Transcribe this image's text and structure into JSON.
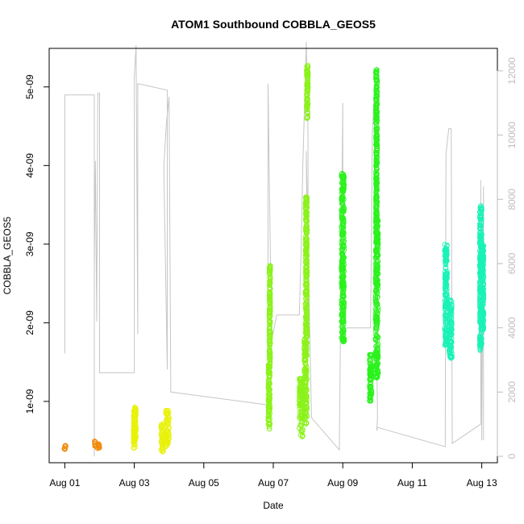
{
  "chart_data": {
    "type": "scatter",
    "title": "ATOM1 Southbound COBBLA_GEOS5",
    "xlabel": "Date",
    "ylabel": "COBBLA_GEOS5",
    "x_unit": "days",
    "x_tick_labels": [
      "Aug 01",
      "Aug 03",
      "Aug 05",
      "Aug 07",
      "Aug 09",
      "Aug 11",
      "Aug 13"
    ],
    "x_tick_values": [
      0,
      2,
      4,
      6,
      8,
      10,
      12
    ],
    "xlim": [
      -0.45,
      12.45
    ],
    "y_tick_labels": [
      "1e-09",
      "2e-09",
      "3e-09",
      "4e-09",
      "5e-09"
    ],
    "y_tick_values": [
      1e-09,
      2e-09,
      3e-09,
      4e-09,
      5e-09
    ],
    "ylim": [
      2.2e-10,
      5.49e-09
    ],
    "y2_tick_labels": [
      "0",
      "2000",
      "4000",
      "6000",
      "8000",
      "10000",
      "12000"
    ],
    "y2_tick_values": [
      0,
      2000,
      4000,
      6000,
      8000,
      10000,
      12000
    ],
    "y2lim": [
      -200,
      12700
    ],
    "grid": false,
    "colors": {
      "secondary_line": "#c6c6c6",
      "right_axis": "#bdbdbd",
      "frame": "#000000"
    },
    "series": [
      {
        "color": "#f28a0c",
        "clusters": [
          {
            "x": 0.0,
            "width": 0.05,
            "ymin": 3.9e-10,
            "ymax": 4.4e-10
          },
          {
            "x": 0.88,
            "width": 0.06,
            "ymin": 4.3e-10,
            "ymax": 5e-10
          },
          {
            "x": 0.97,
            "width": 0.06,
            "ymin": 4e-10,
            "ymax": 4.6e-10
          }
        ]
      },
      {
        "color": "#e8f20a",
        "clusters": [
          {
            "x": 2.0,
            "width": 0.05,
            "ymin": 3.9e-10,
            "ymax": 9e-10
          },
          {
            "x": 2.03,
            "width": 0.04,
            "ymin": 5e-10,
            "ymax": 9.3e-10
          },
          {
            "x": 2.8,
            "width": 0.08,
            "ymin": 3.6e-10,
            "ymax": 7.2e-10
          },
          {
            "x": 2.95,
            "width": 0.1,
            "ymin": 4.2e-10,
            "ymax": 9e-10
          }
        ]
      },
      {
        "color": "#8bf21a",
        "clusters": [
          {
            "x": 5.88,
            "width": 0.05,
            "ymin": 6.5e-10,
            "ymax": 1.5e-09
          },
          {
            "x": 5.9,
            "width": 0.03,
            "ymin": 1.5e-09,
            "ymax": 2.75e-09
          },
          {
            "x": 6.8,
            "width": 0.1,
            "ymin": 5.5e-10,
            "ymax": 1.3e-09
          },
          {
            "x": 6.93,
            "width": 0.08,
            "ymin": 7e-10,
            "ymax": 1.8e-09
          },
          {
            "x": 6.95,
            "width": 0.05,
            "ymin": 1.8e-09,
            "ymax": 3.6e-09
          },
          {
            "x": 6.98,
            "width": 0.04,
            "ymin": 4.6e-09,
            "ymax": 5.28e-09
          }
        ]
      },
      {
        "color": "#2af21c",
        "clusters": [
          {
            "x": 8.0,
            "width": 0.08,
            "ymin": 1.75e-09,
            "ymax": 3.9e-09
          },
          {
            "x": 8.8,
            "width": 0.06,
            "ymin": 1e-09,
            "ymax": 1.6e-09
          },
          {
            "x": 8.98,
            "width": 0.08,
            "ymin": 1.3e-09,
            "ymax": 3.3e-09
          },
          {
            "x": 8.97,
            "width": 0.04,
            "ymin": 3.3e-09,
            "ymax": 5.22e-09
          }
        ]
      },
      {
        "color": "#1af2b6",
        "clusters": [
          {
            "x": 10.97,
            "width": 0.07,
            "ymin": 1.7e-09,
            "ymax": 3e-09
          },
          {
            "x": 11.1,
            "width": 0.08,
            "ymin": 1.55e-09,
            "ymax": 2.3e-09
          },
          {
            "x": 11.97,
            "width": 0.06,
            "ymin": 1.65e-09,
            "ymax": 3.5e-09
          },
          {
            "x": 12.03,
            "width": 0.05,
            "ymin": 1.9e-09,
            "ymax": 3e-09
          }
        ]
      }
    ],
    "secondary_series": {
      "axis": "right",
      "points": [
        [
          0.0,
          11250
        ],
        [
          0.0,
          3200
        ],
        [
          0.0,
          11250
        ],
        [
          0.85,
          11250
        ],
        [
          0.85,
          0
        ],
        [
          0.85,
          5800
        ],
        [
          0.88,
          9200
        ],
        [
          0.92,
          4200
        ],
        [
          0.95,
          11300
        ],
        [
          1.0,
          11300
        ],
        [
          1.0,
          2600
        ],
        [
          2.0,
          2600
        ],
        [
          2.0,
          11800
        ],
        [
          2.05,
          12800
        ],
        [
          2.1,
          3800
        ],
        [
          2.1,
          11600
        ],
        [
          2.95,
          11400
        ],
        [
          2.95,
          2700
        ],
        [
          2.85,
          9000
        ],
        [
          2.92,
          10300
        ],
        [
          3.0,
          11200
        ],
        [
          3.05,
          2000
        ],
        [
          5.85,
          1600
        ],
        [
          5.85,
          11600
        ],
        [
          5.95,
          3600
        ],
        [
          6.1,
          4400
        ],
        [
          6.75,
          4400
        ],
        [
          6.8,
          6400
        ],
        [
          6.85,
          9000
        ],
        [
          6.95,
          12900
        ],
        [
          7.0,
          10000
        ],
        [
          7.0,
          3600
        ],
        [
          6.95,
          9500
        ],
        [
          7.1,
          1200
        ],
        [
          7.9,
          200
        ],
        [
          8.0,
          11000
        ],
        [
          8.0,
          3800
        ],
        [
          8.1,
          4000
        ],
        [
          8.8,
          4000
        ],
        [
          8.85,
          10000
        ],
        [
          8.9,
          11200
        ],
        [
          8.95,
          6500
        ],
        [
          9.0,
          1200
        ],
        [
          8.98,
          800
        ],
        [
          9.0,
          900
        ],
        [
          10.95,
          300
        ],
        [
          10.97,
          9400
        ],
        [
          11.05,
          10200
        ],
        [
          11.12,
          10200
        ],
        [
          11.15,
          400
        ],
        [
          11.97,
          1000
        ],
        [
          11.97,
          8600
        ],
        [
          12.0,
          500
        ],
        [
          12.05,
          8400
        ],
        [
          12.05,
          500
        ]
      ]
    }
  }
}
